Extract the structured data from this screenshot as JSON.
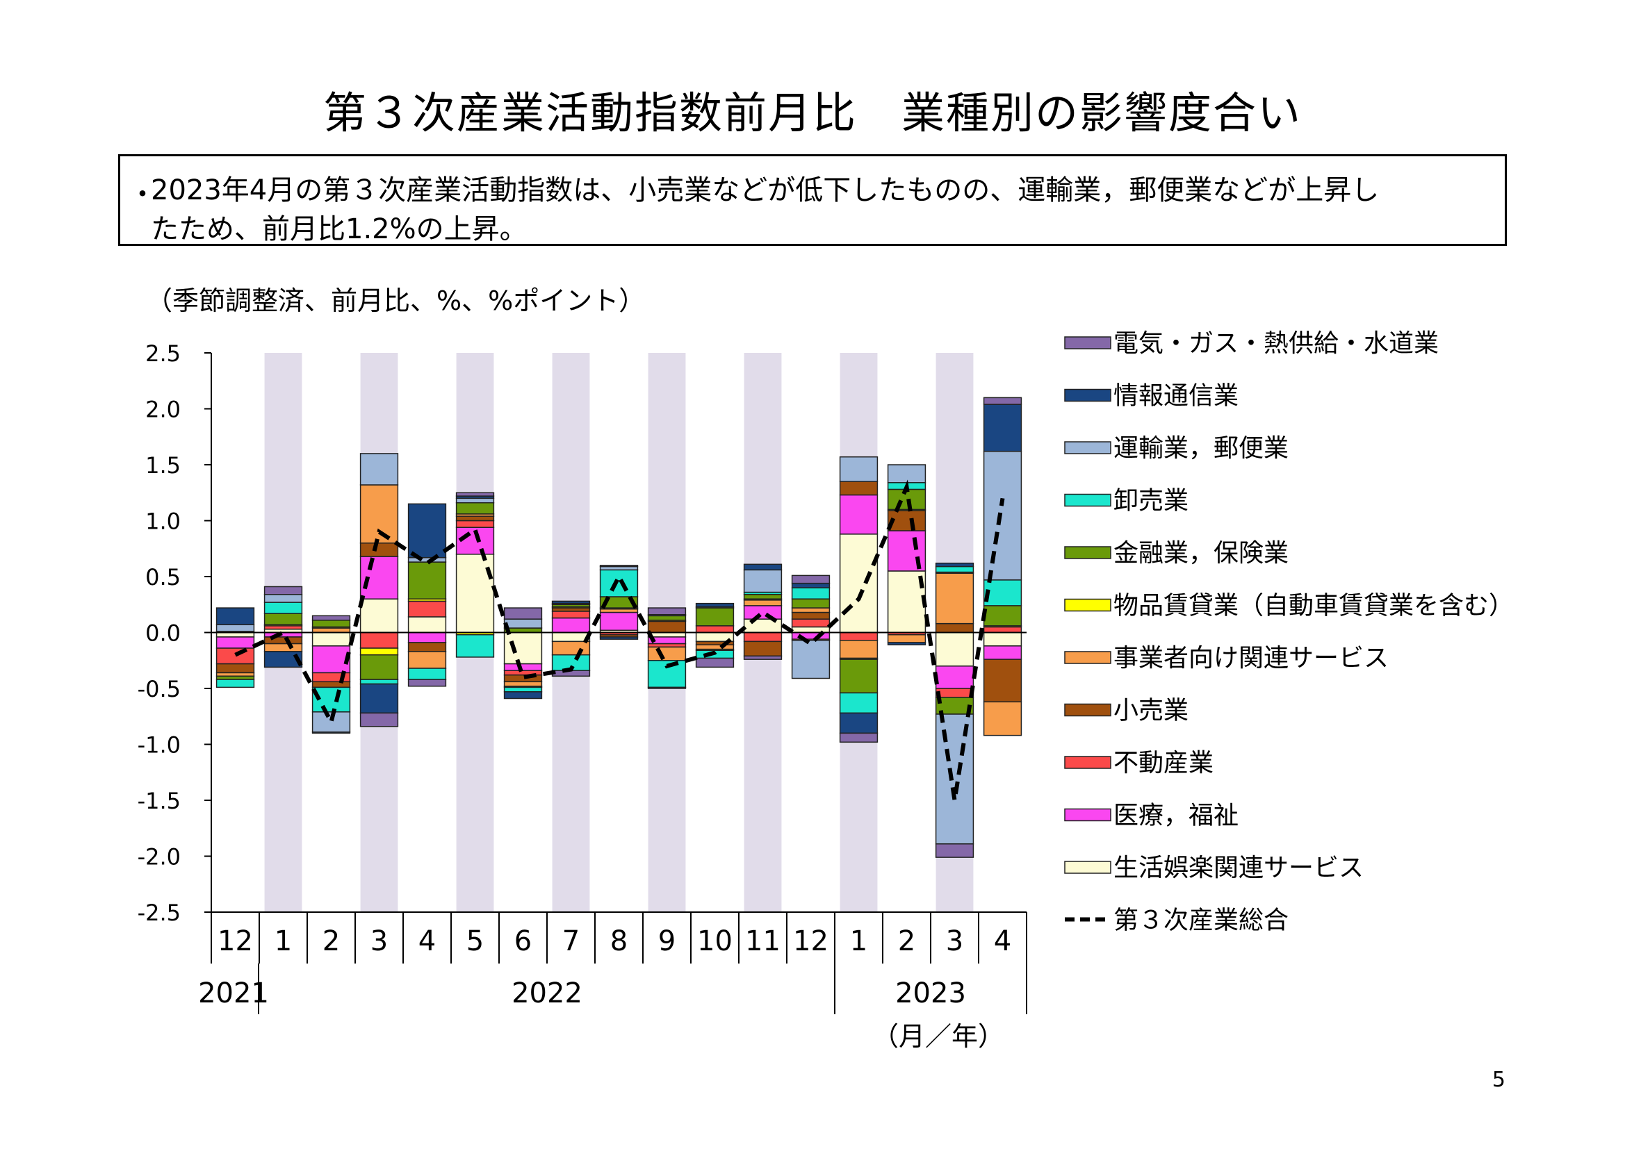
{
  "title": "第３次産業活動指数前月比　業種別の影響度合い",
  "summary": {
    "bullet": "・",
    "line1": "2023年4月の第３次産業活動指数は、小売業などが低下したものの、運輸業，郵便業などが上昇し",
    "line2": "たため、前月比1.2%の上昇。"
  },
  "page_number": "5",
  "chart_data": {
    "type": "bar",
    "stacked": true,
    "unit_note": "（季節調整済、前月比、%、%ポイント）",
    "x_unit_label": "（月／年）",
    "ylim": [
      -2.5,
      2.5
    ],
    "yticks": [
      "2.5",
      "2.0",
      "1.5",
      "1.0",
      "0.5",
      "0.0",
      "-0.5",
      "-1.0",
      "-1.5",
      "-2.0",
      "-2.5"
    ],
    "categories": [
      "12",
      "1",
      "2",
      "3",
      "4",
      "5",
      "6",
      "7",
      "8",
      "9",
      "10",
      "11",
      "12",
      "1",
      "2",
      "3",
      "4"
    ],
    "years": [
      {
        "label": "2021",
        "from": 0,
        "to": 0
      },
      {
        "label": "2022",
        "from": 1,
        "to": 12
      },
      {
        "label": "2023",
        "from": 13,
        "to": 16
      }
    ],
    "shaded_columns": [
      1,
      3,
      5,
      7,
      9,
      11,
      13,
      15
    ],
    "shade_color": "#e1dcea",
    "series": [
      {
        "name": "生活娯楽関連サービス",
        "color": "#fdfbd5",
        "values": [
          -0.04,
          0.03,
          -0.12,
          0.3,
          0.14,
          0.7,
          -0.28,
          -0.08,
          0.02,
          -0.04,
          -0.08,
          0.12,
          0.05,
          0.88,
          0.55,
          -0.3,
          -0.12
        ]
      },
      {
        "name": "医療，福祉",
        "color": "#fa47f0",
        "values": [
          -0.1,
          -0.04,
          -0.24,
          0.38,
          -0.09,
          0.24,
          -0.06,
          0.13,
          0.16,
          -0.06,
          0.0,
          0.12,
          -0.06,
          0.35,
          0.36,
          -0.2,
          -0.12
        ]
      },
      {
        "name": "不動産業",
        "color": "#fb4a4a",
        "values": [
          -0.14,
          0.03,
          -0.08,
          -0.14,
          0.14,
          0.06,
          -0.04,
          0.06,
          -0.02,
          -0.03,
          0.06,
          -0.08,
          0.07,
          -0.07,
          -0.02,
          -0.08,
          0.05
        ]
      },
      {
        "name": "小売業",
        "color": "#a0500e",
        "values": [
          -0.08,
          -0.06,
          -0.05,
          0.12,
          -0.08,
          0.04,
          -0.06,
          0.03,
          -0.02,
          0.1,
          -0.03,
          -0.13,
          0.06,
          0.12,
          0.18,
          0.08,
          -0.38
        ]
      },
      {
        "name": "事業者向け関連サービス",
        "color": "#f79d4b",
        "values": [
          -0.03,
          -0.07,
          0.04,
          0.52,
          -0.15,
          0.02,
          -0.04,
          -0.12,
          0.03,
          -0.12,
          -0.04,
          0.05,
          0.04,
          -0.16,
          -0.07,
          0.45,
          -0.3
        ]
      },
      {
        "name": "物品賃貸業（自動車賃貸業を含む）",
        "color": "#ffff00",
        "values": [
          0.01,
          0.01,
          0.01,
          -0.06,
          0.02,
          -0.02,
          -0.01,
          0.01,
          0.01,
          0.01,
          -0.01,
          0.01,
          -0.01,
          -0.01,
          0.01,
          0.01,
          0.01
        ]
      },
      {
        "name": "金融業，保険業",
        "color": "#6a9a0a",
        "values": [
          -0.03,
          0.1,
          0.06,
          -0.22,
          0.33,
          0.1,
          0.04,
          0.02,
          0.1,
          0.04,
          0.16,
          0.04,
          0.08,
          -0.3,
          0.18,
          -0.15,
          0.18
        ]
      },
      {
        "name": "卸売業",
        "color": "#1be6cd",
        "values": [
          -0.07,
          0.1,
          -0.22,
          -0.04,
          -0.1,
          -0.2,
          -0.04,
          -0.14,
          0.24,
          -0.24,
          -0.07,
          0.02,
          0.1,
          -0.18,
          0.06,
          0.05,
          0.23
        ]
      },
      {
        "name": "運輸業，郵便業",
        "color": "#9cb6d8",
        "values": [
          0.06,
          0.07,
          -0.18,
          0.28,
          0.04,
          0.04,
          0.08,
          0.01,
          0.03,
          0.01,
          0.01,
          0.2,
          -0.34,
          0.22,
          0.16,
          -1.16,
          1.15
        ]
      },
      {
        "name": "情報通信業",
        "color": "#1a4682",
        "values": [
          0.15,
          -0.14,
          -0.01,
          -0.26,
          0.48,
          0.02,
          -0.06,
          0.02,
          -0.02,
          -0.01,
          0.03,
          0.05,
          0.04,
          -0.18,
          -0.02,
          0.03,
          0.42
        ]
      },
      {
        "name": "電気・ガス・熱供給・水道業",
        "color": "#8468a8",
        "values": [
          0.0,
          0.07,
          0.04,
          -0.12,
          -0.06,
          0.03,
          0.1,
          -0.05,
          0.01,
          0.06,
          -0.08,
          -0.03,
          0.07,
          -0.08,
          0.0,
          -0.12,
          0.06
        ]
      }
    ],
    "total_line": {
      "name": "第３次産業総合",
      "values": [
        -0.2,
        0.0,
        -0.8,
        0.9,
        0.62,
        0.92,
        -0.4,
        -0.33,
        0.5,
        -0.3,
        -0.18,
        0.18,
        -0.1,
        0.3,
        1.3,
        -1.5,
        1.2
      ]
    },
    "legend": [
      {
        "name": "電気・ガス・熱供給・水道業",
        "color": "#8468a8",
        "kind": "box"
      },
      {
        "name": "情報通信業",
        "color": "#1a4682",
        "kind": "box"
      },
      {
        "name": "運輸業，郵便業",
        "color": "#9cb6d8",
        "kind": "box"
      },
      {
        "name": "卸売業",
        "color": "#1be6cd",
        "kind": "box"
      },
      {
        "name": "金融業，保険業",
        "color": "#6a9a0a",
        "kind": "box"
      },
      {
        "name": "物品賃貸業（自動車賃貸業を含む）",
        "color": "#ffff00",
        "kind": "box"
      },
      {
        "name": "事業者向け関連サービス",
        "color": "#f79d4b",
        "kind": "box"
      },
      {
        "name": "小売業",
        "color": "#a0500e",
        "kind": "box"
      },
      {
        "name": "不動産業",
        "color": "#fb4a4a",
        "kind": "box"
      },
      {
        "name": "医療，福祉",
        "color": "#fa47f0",
        "kind": "box"
      },
      {
        "name": "生活娯楽関連サービス",
        "color": "#fdfbd5",
        "kind": "box"
      },
      {
        "name": "第３次産業総合",
        "color": "#000000",
        "kind": "dashed-line"
      }
    ]
  }
}
